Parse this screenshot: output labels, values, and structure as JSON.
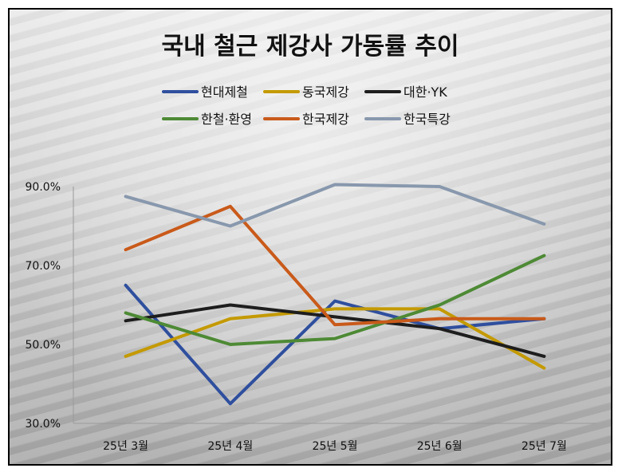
{
  "chart_data": {
    "type": "line",
    "title": "국내 철근 제강사 가동률 추이",
    "categories": [
      "25년 3월",
      "25년 4월",
      "25년 5월",
      "25년 6월",
      "25년 7월"
    ],
    "yticks": [
      "90.0%",
      "70.0%",
      "50.0%",
      "30.0%"
    ],
    "ylim": [
      30,
      90
    ],
    "xlabel": "",
    "ylabel": "",
    "grid": false,
    "legend_position": "top",
    "series": [
      {
        "name": "현대제철",
        "color": "#2f4f9e",
        "values": [
          65.0,
          35.0,
          61.0,
          54.0,
          56.5
        ]
      },
      {
        "name": "동국제강",
        "color": "#c49a00",
        "values": [
          47.0,
          56.5,
          59.0,
          59.0,
          44.0
        ]
      },
      {
        "name": "대한·YK",
        "color": "#1e1e1e",
        "values": [
          56.0,
          60.0,
          57.0,
          54.0,
          47.0
        ]
      },
      {
        "name": "한철·환영",
        "color": "#4e8a35",
        "values": [
          58.0,
          50.0,
          51.5,
          60.0,
          72.5
        ]
      },
      {
        "name": "한국제강",
        "color": "#c95a1a",
        "values": [
          74.0,
          85.0,
          55.0,
          56.5,
          56.5
        ]
      },
      {
        "name": "한국특강",
        "color": "#8898ad",
        "values": [
          87.5,
          80.0,
          90.5,
          90.0,
          80.5
        ]
      }
    ]
  }
}
